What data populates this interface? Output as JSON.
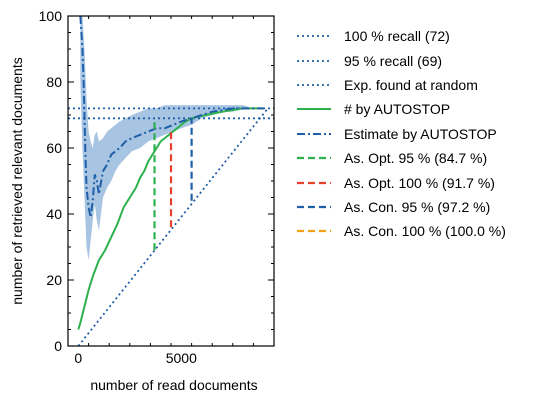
{
  "chart_data": {
    "type": "line",
    "xlabel": "number of read documents",
    "ylabel": "number of retrieved relevant documents",
    "xlim": [
      -500,
      9500
    ],
    "ylim": [
      0,
      100
    ],
    "x_ticks": [
      0,
      5000
    ],
    "y_ticks": [
      0,
      20,
      40,
      60,
      80,
      100
    ],
    "grid": false,
    "legend_position": "right, outside plot",
    "series": [
      {
        "name": "100 % recall (72)",
        "kind": "hline",
        "value": 72,
        "color": "#1f5fa8",
        "style": "dotted"
      },
      {
        "name": "95 % recall (69)",
        "kind": "hline",
        "value": 69,
        "color": "#1f5fa8",
        "style": "dotted"
      },
      {
        "name": "Exp. found at random",
        "kind": "line",
        "color": "#1f5fa8",
        "style": "dotted",
        "x": [
          0,
          9200
        ],
        "y": [
          0,
          72
        ]
      },
      {
        "name": "# by AUTOSTOP",
        "kind": "line",
        "color": "#2db14d",
        "style": "solid",
        "x": [
          0,
          100,
          300,
          500,
          700,
          1000,
          1300,
          1600,
          1900,
          2200,
          2500,
          2800,
          3000,
          3200,
          3400,
          3600,
          3800,
          4000,
          4200,
          4400,
          4600,
          4800,
          5000,
          5200,
          5500,
          5800,
          6200,
          6600,
          7000,
          7500,
          8000,
          8500,
          9000
        ],
        "y": [
          5,
          7,
          12,
          17,
          21,
          26,
          29,
          33,
          37,
          42,
          45,
          48,
          51,
          53,
          56,
          58,
          60,
          62,
          63,
          64,
          65,
          66,
          67,
          68,
          69,
          69.5,
          70,
          70.5,
          71,
          71.5,
          72,
          72,
          72
        ]
      },
      {
        "name": "Estimate by AUTOSTOP",
        "kind": "line",
        "color": "#1f5fa8",
        "style": "dashdot",
        "x": [
          100,
          150,
          200,
          250,
          300,
          350,
          400,
          500,
          600,
          700,
          800,
          900,
          1000,
          1200,
          1400,
          1600,
          1800,
          2000,
          2300,
          2600,
          3000,
          3400,
          3800,
          4200,
          4600,
          5000,
          5500,
          6000,
          6500,
          7000,
          7500,
          8000,
          8500,
          9000
        ],
        "y": [
          100,
          95,
          90,
          82,
          70,
          57,
          48,
          42,
          39,
          44,
          52,
          50,
          46,
          53,
          55,
          58,
          59,
          60,
          62,
          63,
          64,
          65,
          66,
          66,
          67,
          68,
          69,
          70,
          71,
          71.5,
          72,
          72,
          72,
          72
        ]
      },
      {
        "name": "As. Opt. 95 % (84.7 %)",
        "kind": "stop",
        "x": 3700,
        "y_from": 29,
        "y_to": 69,
        "color": "#2db14d",
        "style": "dashed"
      },
      {
        "name": "As. Opt. 100 % (91.7 %)",
        "kind": "stop",
        "x": 4500,
        "y_from": 36,
        "y_to": 65,
        "color": "#e6402c",
        "style": "dashed"
      },
      {
        "name": "As. Con. 95 % (97.2 %)",
        "kind": "stop",
        "x": 5500,
        "y_from": 44,
        "y_to": 69,
        "color": "#1f5fa8",
        "style": "dashed"
      },
      {
        "name": "As. Con. 100 % (100.0 %)",
        "kind": "stop",
        "x": 8900,
        "y_from": 72,
        "y_to": 72,
        "color": "#f2a01a",
        "style": "dashed"
      }
    ],
    "uncertainty_band": {
      "color": "#a7c4e2",
      "x": [
        100,
        200,
        300,
        400,
        500,
        600,
        700,
        800,
        900,
        1000,
        1200,
        1400,
        1600,
        1800,
        2000,
        2300,
        2600,
        3000,
        3400,
        3800,
        4200,
        4600,
        5000,
        5500,
        6000,
        6500,
        7000,
        7500,
        8000,
        8500,
        9000
      ],
      "lower": [
        80,
        60,
        45,
        30,
        26,
        32,
        38,
        43,
        38,
        35,
        45,
        48,
        50,
        53,
        55,
        57,
        59,
        60,
        62,
        63,
        64,
        65,
        66,
        67,
        69,
        70,
        71,
        71,
        72,
        72,
        72
      ],
      "upper": [
        100,
        100,
        90,
        75,
        65,
        62,
        60,
        64,
        65,
        62,
        63,
        65,
        66,
        67,
        68,
        69,
        70,
        71,
        72,
        72,
        73,
        73,
        73,
        73,
        73,
        73,
        73,
        73,
        73,
        72,
        72
      ]
    }
  }
}
